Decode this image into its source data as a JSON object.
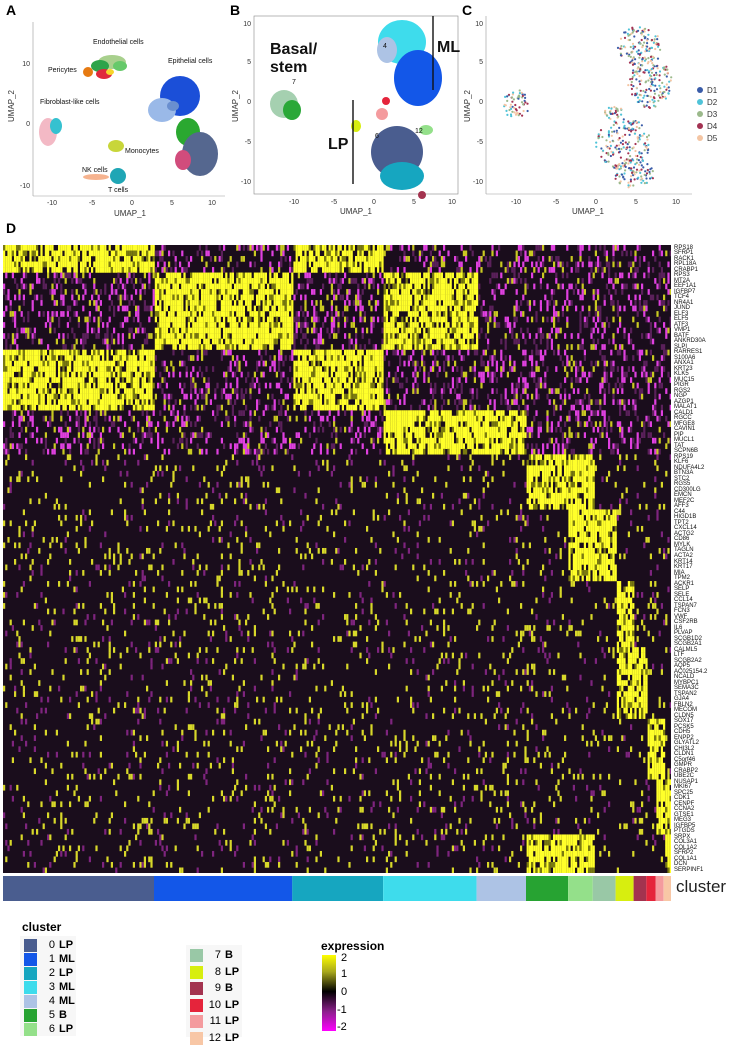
{
  "panels": {
    "A": {
      "label": "A",
      "xlabel": "UMAP_1",
      "ylabel": "UMAP_2",
      "xticks": [
        "-10",
        "-5",
        "0",
        "5",
        "10"
      ],
      "yticks": [
        "10",
        "0",
        "-10"
      ],
      "cell_labels": [
        "Endothelial cells",
        "Pericytes",
        "Epithelial cells",
        "Fibroblast-like cells",
        "Monocytes",
        "NK cells",
        "T cells"
      ]
    },
    "B": {
      "label": "B",
      "xlabel": "UMAP_1",
      "ylabel": "UMAP_2",
      "xticks": [
        "-10",
        "-5",
        "0",
        "5",
        "10"
      ],
      "yticks": [
        "10",
        "5",
        "0",
        "-5",
        "-10"
      ],
      "annotations": [
        "Basal/",
        "stem",
        "ML",
        "LP"
      ],
      "cluster_numbers": [
        "4",
        "7",
        "6",
        "12"
      ]
    },
    "C": {
      "label": "C",
      "xlabel": "UMAP_1",
      "ylabel": "UMAP_2",
      "xticks": [
        "-10",
        "-5",
        "0",
        "5",
        "10"
      ],
      "yticks": [
        "10",
        "5",
        "0",
        "-5",
        "-10"
      ],
      "legend": [
        {
          "name": "D1",
          "color": "#3a5ca8"
        },
        {
          "name": "D2",
          "color": "#4fc3d8"
        },
        {
          "name": "D3",
          "color": "#9bb98b"
        },
        {
          "name": "D4",
          "color": "#a33252"
        },
        {
          "name": "D5",
          "color": "#f4c5a3"
        }
      ]
    },
    "D": {
      "label": "D",
      "cluster_axis_label": "cluster"
    }
  },
  "genes": [
    "RPS18",
    "SFRP1",
    "RACK1",
    "RPL18A",
    "CRABP1",
    "RPS3",
    "MT2A",
    "EEF1A1",
    "IGFBP7",
    "TCF4",
    "NR4A1",
    "JUND",
    "ELF3",
    "ELF5",
    "ATF3",
    "VMP1",
    "BATF",
    "ANKRD30A",
    "SLPI",
    "RARRES1",
    "S100A6",
    "ANXA1",
    "KRT23",
    "KLK5",
    "MUC15",
    "PIGR",
    "RGS2",
    "NGP",
    "AZGP1",
    "MALAT1",
    "CALD1",
    "RGCC",
    "MFGE8",
    "CAVIN1",
    "PIP",
    "MUCL1",
    "TAT",
    "SCPN6B",
    "RPS19",
    "KLF6",
    "NDUFA4L2",
    "BTN3A",
    "STC2",
    "RGS5",
    "CD300LG",
    "EMCN",
    "MEF2C",
    "AFF3",
    "C44",
    "HIGD1B",
    "TPT2",
    "CXCL14",
    "ACTG2",
    "CD86",
    "MYLK",
    "TAGLN",
    "ACTA2",
    "KRT14",
    "KRT17",
    "MIA",
    "TPM2",
    "ACKR1",
    "SELP",
    "SELE",
    "CCL14",
    "TSPAN7",
    "FCN3",
    "VWF",
    "CSF2RB",
    "IL6",
    "PLVAP",
    "SCGB1D2",
    "SCGB2A1",
    "CALML5",
    "LTF",
    "SCGB2A2",
    "AQP5",
    "AC025154.2",
    "NCALD",
    "MYBPC1",
    "SEMA3C",
    "TSPAN2",
    "GJA4",
    "FBLN2",
    "MECOM",
    "CLDN5",
    "SOX17",
    "PCSK5",
    "CDH5",
    "ENPP2",
    "GLYATL2",
    "CHI3L2",
    "CLDN1",
    "C5orf46",
    "GMPR",
    "CRABP2",
    "UBE2C",
    "NUSAP1",
    "MKI67",
    "SPC25",
    "CDK1",
    "CENPF",
    "CCNA2",
    "GTSE1",
    "MEG3",
    "IGFBP5",
    "PTGDS",
    "SRPX",
    "COL3A1",
    "COL1A2",
    "SFRP2",
    "COL1A1",
    "DCN",
    "SERPINF1"
  ],
  "clusters": [
    {
      "id": "0",
      "type": "LP",
      "color": "#4a5d8f",
      "width_frac": 0.226
    },
    {
      "id": "1",
      "type": "ML",
      "color": "#1357e8",
      "width_frac": 0.207
    },
    {
      "id": "2",
      "type": "LP",
      "color": "#16a6c0",
      "width_frac": 0.136
    },
    {
      "id": "3",
      "type": "ML",
      "color": "#3edcec",
      "width_frac": 0.14
    },
    {
      "id": "4",
      "type": "ML",
      "color": "#adc3e5",
      "width_frac": 0.074
    },
    {
      "id": "5",
      "type": "B",
      "color": "#27a332",
      "width_frac": 0.063
    },
    {
      "id": "6",
      "type": "LP",
      "color": "#94e08a",
      "width_frac": 0.037
    },
    {
      "id": "7",
      "type": "B",
      "color": "#99c8a6",
      "width_frac": 0.034
    },
    {
      "id": "8",
      "type": "LP",
      "color": "#d7ee0f",
      "width_frac": 0.027
    },
    {
      "id": "9",
      "type": "B",
      "color": "#a3334f",
      "width_frac": 0.019
    },
    {
      "id": "10",
      "type": "LP",
      "color": "#e5243b",
      "width_frac": 0.014
    },
    {
      "id": "11",
      "type": "LP",
      "color": "#f49b9e",
      "width_frac": 0.012
    },
    {
      "id": "12",
      "type": "LP",
      "color": "#f8c7a6",
      "width_frac": 0.011
    }
  ],
  "legend": {
    "cluster_title": "cluster",
    "expression_title": "expression",
    "expression_ticks": [
      "2",
      "1",
      "0",
      "-1",
      "-2"
    ],
    "expression_colors": {
      "high": "#ffff00",
      "mid": "#000000",
      "low": "#ff00ff"
    }
  }
}
